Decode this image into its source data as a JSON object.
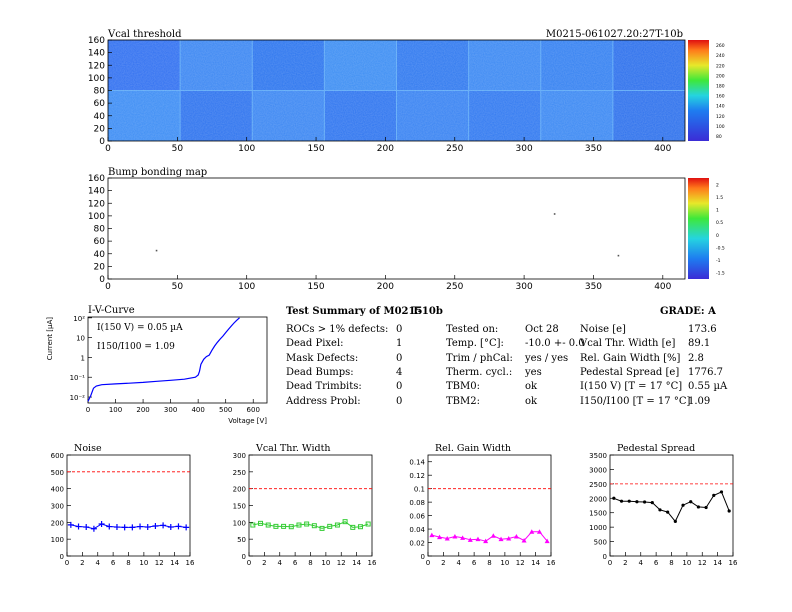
{
  "header": {
    "left_title": "Vcal threshold",
    "right_id": "M0215-061027.20:27T-10b"
  },
  "vcal_map": {
    "x_ticks": [
      "0",
      "50",
      "100",
      "150",
      "200",
      "250",
      "300",
      "350",
      "400"
    ],
    "y_ticks": [
      "0",
      "20",
      "40",
      "60",
      "80",
      "100",
      "120",
      "140",
      "160"
    ],
    "colorbar_ticks": [
      "80",
      "100",
      "120",
      "140",
      "160",
      "180",
      "200",
      "220",
      "240",
      "260"
    ]
  },
  "bump_map": {
    "title": "Bump bonding map",
    "x_ticks": [
      "0",
      "50",
      "100",
      "150",
      "200",
      "250",
      "300",
      "350",
      "400"
    ],
    "y_ticks": [
      "0",
      "20",
      "40",
      "60",
      "80",
      "100",
      "120",
      "140",
      "160"
    ],
    "colorbar_ticks": [
      "-1.5",
      "-1",
      "-0.5",
      "0",
      "0.5",
      "1",
      "1.5",
      "2"
    ]
  },
  "iv_curve": {
    "title": "I-V-Curve",
    "ylabel": "Current [µA]",
    "xlabel": "Voltage [V]",
    "annotation_current": "I(150 V) = 0.05 µA",
    "annotation_ratio": "I150/I100 = 1.09",
    "x_ticks": [
      "0",
      "100",
      "200",
      "300",
      "400",
      "500",
      "600"
    ],
    "y_ticks": [
      "10⁻²",
      "10⁻¹",
      "1",
      "10",
      "10²"
    ]
  },
  "summary": {
    "title": "Test Summary of M0215",
    "subtitle": "T-10b",
    "grade": "GRADE:  A",
    "col1": [
      {
        "label": "ROCs > 1% defects:",
        "value": "0"
      },
      {
        "label": "Dead Pixel:",
        "value": "1"
      },
      {
        "label": "Mask Defects:",
        "value": "0"
      },
      {
        "label": "Dead Bumps:",
        "value": "4"
      },
      {
        "label": "Dead Trimbits:",
        "value": "0"
      },
      {
        "label": "Address Probl:",
        "value": "0"
      }
    ],
    "col2": [
      {
        "label": "Tested on:",
        "value": "Oct 28"
      },
      {
        "label": "Temp. [°C]:",
        "value": "-10.0 +- 0.0"
      },
      {
        "label": "Trim / phCal:",
        "value": "yes / yes"
      },
      {
        "label": "Therm. cycl.:",
        "value": "yes"
      },
      {
        "label": "TBM0:",
        "value": "ok"
      },
      {
        "label": "TBM2:",
        "value": "ok"
      }
    ],
    "col3": [
      {
        "label": "Noise [e]",
        "value": "173.6"
      },
      {
        "label": "Vcal Thr. Width [e]",
        "value": "89.1"
      },
      {
        "label": "Rel. Gain Width [%]",
        "value": "2.8"
      },
      {
        "label": "Pedestal Spread [e]",
        "value": "1776.7"
      },
      {
        "label": "I(150 V) [T = 17 °C]",
        "value": "0.55 µA"
      },
      {
        "label": "I150/I100  [T = 17 °C]",
        "value": "1.09"
      }
    ]
  },
  "colors": {
    "noise": "#0000ff",
    "vcal": "#33cc33",
    "gain": "#ff00ff",
    "pedestal": "#000000",
    "limit": "#ff0000",
    "iv": "#0000ff"
  },
  "chart_data": [
    {
      "type": "heatmap",
      "title": "Vcal threshold",
      "xlim": [
        0,
        416
      ],
      "ylim": [
        0,
        160
      ],
      "zlim": [
        80,
        260
      ],
      "note": "16 ROC blocks, 2 rows x 8 columns"
    },
    {
      "type": "heatmap",
      "title": "Bump bonding map",
      "xlim": [
        0,
        416
      ],
      "ylim": [
        0,
        160
      ],
      "zlim": [
        -1.5,
        2
      ],
      "points": [
        [
          322,
          103
        ],
        [
          35,
          45
        ],
        [
          368,
          37
        ]
      ]
    },
    {
      "type": "line",
      "title": "I-V-Curve",
      "xlabel": "Voltage [V]",
      "ylabel": "Current [µA]",
      "xlim": [
        0,
        600
      ],
      "ylim": [
        0.005,
        100
      ],
      "yscale": "log",
      "x": [
        0,
        10,
        20,
        30,
        50,
        100,
        150,
        200,
        250,
        300,
        350,
        390,
        400,
        405,
        410,
        420,
        430,
        440,
        450,
        460,
        470,
        480,
        490,
        500,
        510,
        520,
        530,
        540,
        550
      ],
      "y": [
        0.006,
        0.012,
        0.028,
        0.036,
        0.042,
        0.046,
        0.05,
        0.055,
        0.062,
        0.07,
        0.08,
        0.1,
        0.13,
        0.2,
        0.45,
        0.8,
        1.1,
        1.3,
        2.3,
        3.8,
        5.8,
        8.5,
        12,
        18,
        26,
        38,
        55,
        75,
        100
      ]
    },
    {
      "type": "line",
      "title": "Noise",
      "xlim": [
        0,
        16
      ],
      "ylim": [
        0,
        600
      ],
      "limit": 500,
      "x": [
        0,
        1,
        2,
        3,
        4,
        5,
        6,
        7,
        8,
        9,
        10,
        11,
        12,
        13,
        14,
        15
      ],
      "series": [
        {
          "values": [
            185,
            175,
            172,
            162,
            190,
            175,
            172,
            170,
            170,
            175,
            172,
            178,
            182,
            172,
            176,
            170
          ]
        }
      ]
    },
    {
      "type": "line",
      "title": "Vcal Thr. Width",
      "xlim": [
        0,
        16
      ],
      "ylim": [
        0,
        300
      ],
      "limit": 200,
      "x": [
        0,
        1,
        2,
        3,
        4,
        5,
        6,
        7,
        8,
        9,
        10,
        11,
        12,
        13,
        14,
        15
      ],
      "series": [
        {
          "values": [
            92,
            97,
            92,
            88,
            88,
            87,
            92,
            95,
            90,
            82,
            88,
            92,
            102,
            85,
            87,
            95
          ]
        }
      ]
    },
    {
      "type": "line",
      "title": "Rel. Gain Width",
      "xlim": [
        0,
        16
      ],
      "ylim": [
        0,
        0.15
      ],
      "limit": 0.1,
      "x": [
        0,
        1,
        2,
        3,
        4,
        5,
        6,
        7,
        8,
        9,
        10,
        11,
        12,
        13,
        14,
        15
      ],
      "series": [
        {
          "values": [
            0.031,
            0.028,
            0.026,
            0.029,
            0.027,
            0.024,
            0.025,
            0.022,
            0.03,
            0.025,
            0.026,
            0.029,
            0.023,
            0.036,
            0.036,
            0.022
          ]
        }
      ]
    },
    {
      "type": "line",
      "title": "Pedestal Spread",
      "xlim": [
        0,
        16
      ],
      "ylim": [
        0,
        3500
      ],
      "limit": 2500,
      "x": [
        0,
        1,
        2,
        3,
        4,
        5,
        6,
        7,
        8,
        9,
        10,
        11,
        12,
        13,
        14,
        15
      ],
      "series": [
        {
          "values": [
            2000,
            1900,
            1900,
            1880,
            1870,
            1850,
            1600,
            1520,
            1200,
            1760,
            1880,
            1700,
            1680,
            2100,
            2220,
            1560
          ]
        }
      ]
    }
  ]
}
